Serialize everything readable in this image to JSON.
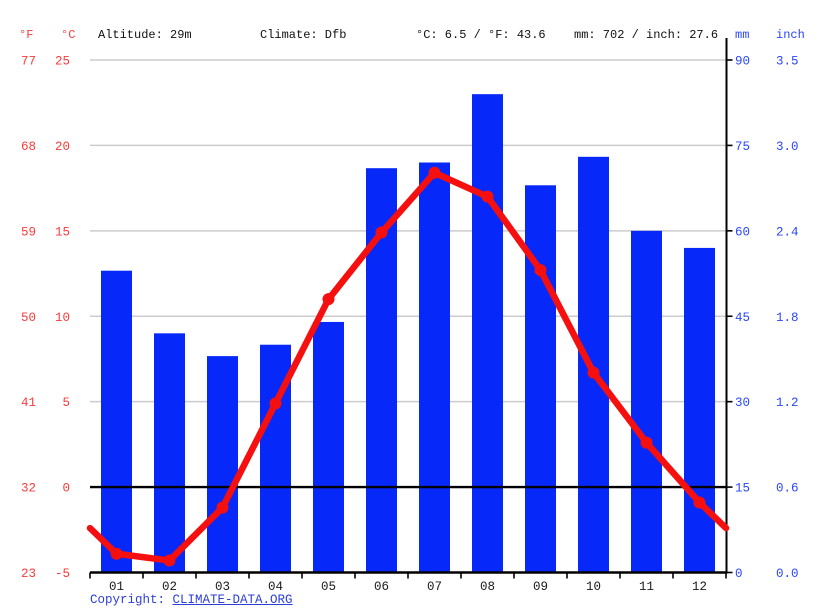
{
  "header": {
    "fahrenheit_label": "°F",
    "celsius_label": "°C",
    "altitude": "Altitude: 29m",
    "climate": "Climate: Dfb",
    "avg_temperature": "°C: 6.5 / °F: 43.6",
    "precipitation_total": "mm: 702 / inch: 27.6",
    "mm_label": "mm",
    "inch_label": "inch"
  },
  "axes": {
    "left_fahrenheit": [
      "77",
      "68",
      "59",
      "50",
      "41",
      "32",
      "23"
    ],
    "left_celsius": [
      "25",
      "20",
      "15",
      "10",
      "5",
      "0",
      "-5"
    ],
    "right_mm": [
      "90",
      "75",
      "60",
      "45",
      "30",
      "15",
      "0"
    ],
    "right_inch": [
      "3.5",
      "3.0",
      "2.4",
      "1.8",
      "1.2",
      "0.6",
      "0.0"
    ]
  },
  "chart_data": {
    "type": "bar+line",
    "title": "Climate graph (climograph)",
    "categories": [
      "01",
      "02",
      "03",
      "04",
      "05",
      "06",
      "07",
      "08",
      "09",
      "10",
      "11",
      "12"
    ],
    "series": [
      {
        "name": "Precipitation (mm)",
        "type": "bar",
        "values": [
          53,
          42,
          38,
          40,
          44,
          71,
          72,
          84,
          68,
          73,
          60,
          57
        ]
      },
      {
        "name": "Temperature (°C)",
        "type": "line",
        "values": [
          -3.9,
          -4.3,
          -1.2,
          4.9,
          11.0,
          14.9,
          18.4,
          17.0,
          12.7,
          6.7,
          2.6,
          -0.9
        ],
        "edge_value": -2.4
      }
    ],
    "y_left_celsius_range": [
      -5,
      25
    ],
    "y_right_mm_range": [
      0,
      90
    ],
    "gridlines_celsius": [
      25,
      20,
      15,
      10,
      5
    ],
    "zero_line_celsius": 0,
    "legend_position": "none",
    "grid": true
  },
  "footer": {
    "copyright_label": "Copyright: ",
    "link_text": "CLIMATE-DATA.ORG"
  },
  "colors": {
    "bar_blue": "#0629fa",
    "line_red": "#f50f0f",
    "axis_text_red": "#f93b3b",
    "axis_text_blue": "#2946ff",
    "month_text": "#1a1a1a",
    "gridline_gray": "#cccccc",
    "axis_black": "#000000",
    "copyright_blue": "#2c3ed6"
  }
}
